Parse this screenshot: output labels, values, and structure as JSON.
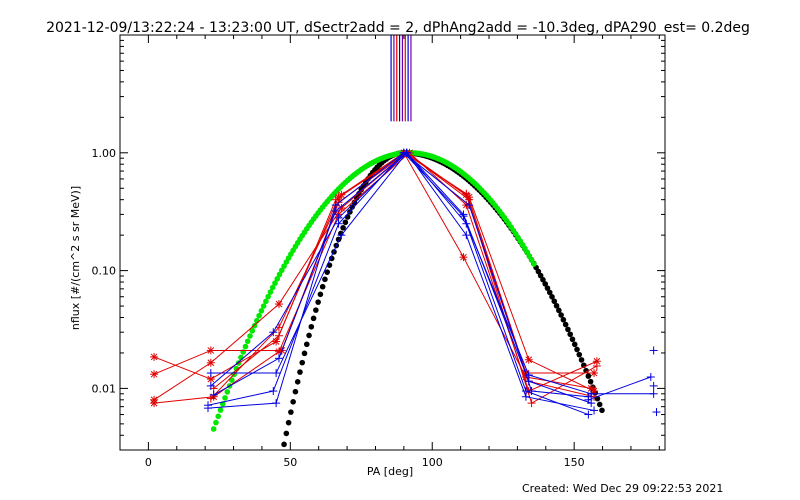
{
  "chart_data": {
    "type": "scatter",
    "title": "2021-12-09/13:22:24 - 13:23:00 UT, dSectr2add = 2, dPhAng2add = -10.3deg, dPA290_est=  0.2deg",
    "xlabel": "PA [deg]",
    "ylabel": "nflux [#/(cm^2 s sr MeV)]",
    "footer": "Created: Wed Dec 29 09:22:53 2021",
    "xlim": [
      -10,
      182
    ],
    "ylim": [
      0.003,
      10
    ],
    "yscale": "log",
    "x_ticks": [
      0,
      50,
      100,
      150
    ],
    "x_tick_labels": [
      "0",
      "50",
      "100",
      "150"
    ],
    "y_ticks": [
      0.01,
      0.1,
      1.0
    ],
    "y_tick_labels": [
      "0.01",
      "0.10",
      "1.00"
    ],
    "colors": {
      "red": "#e00000",
      "blue": "#0000e0",
      "black": "#000000",
      "green": "#00e800",
      "purple": "#7000a0"
    },
    "vertical_lines": [
      {
        "x": 85.5,
        "color": "#0000e0"
      },
      {
        "x": 86.5,
        "color": "#7000a0"
      },
      {
        "x": 87.5,
        "color": "#e00000"
      },
      {
        "x": 88.5,
        "color": "#0000e0"
      },
      {
        "x": 89.5,
        "color": "#7000a0"
      },
      {
        "x": 90.5,
        "color": "#e00000"
      },
      {
        "x": 91.5,
        "color": "#0000e0"
      },
      {
        "x": 92.5,
        "color": "#7000a0"
      }
    ],
    "series": [
      {
        "color": "#e00000",
        "marker": "star",
        "x": [
          2,
          22,
          45,
          67,
          91,
          112,
          133,
          157
        ],
        "y": [
          0.0185,
          0.012,
          0.025,
          0.42,
          1.0,
          0.44,
          0.0135,
          0.0135
        ]
      },
      {
        "color": "#e00000",
        "marker": "star",
        "x": [
          2,
          22,
          46,
          68,
          91,
          113,
          134,
          157
        ],
        "y": [
          0.008,
          0.0165,
          0.052,
          0.34,
          1.0,
          0.42,
          0.0175,
          0.0095
        ]
      },
      {
        "color": "#e00000",
        "marker": "star",
        "x": [
          2,
          23,
          46,
          67,
          92,
          112,
          134,
          158
        ],
        "y": [
          0.0075,
          0.0085,
          0.0205,
          0.3,
          1.0,
          0.36,
          0.0095,
          0.017
        ]
      },
      {
        "color": "#e00000",
        "marker": "star",
        "x": [
          2,
          22,
          47,
          68,
          90,
          111,
          133,
          156
        ],
        "y": [
          0.0132,
          0.021,
          0.021,
          0.44,
          1.0,
          0.13,
          0.0125,
          0.01
        ]
      },
      {
        "color": "#e00000",
        "marker": "plus",
        "x": [
          22,
          46,
          67,
          91,
          113,
          134,
          157
        ],
        "y": [
          0.0082,
          0.033,
          0.38,
          1.0,
          0.4,
          0.0115,
          0.0085
        ]
      },
      {
        "color": "#e00000",
        "marker": "plus",
        "x": [
          23,
          46,
          66,
          90,
          112,
          135,
          158
        ],
        "y": [
          0.01,
          0.028,
          0.4,
          1.0,
          0.45,
          0.0075,
          0.0155
        ]
      },
      {
        "color": "#0000e0",
        "marker": "plus",
        "x": [
          22,
          44,
          67,
          91,
          112,
          133,
          155
        ],
        "y": [
          0.0105,
          0.03,
          0.28,
          1.0,
          0.25,
          0.0095,
          0.006
        ]
      },
      {
        "color": "#0000e0",
        "marker": "plus",
        "x": [
          21,
          45,
          66,
          90,
          111,
          134,
          156
        ],
        "y": [
          0.0068,
          0.0075,
          0.36,
          1.0,
          0.29,
          0.013,
          0.009
        ]
      },
      {
        "color": "#0000e0",
        "marker": "plus",
        "x": [
          22,
          45,
          68,
          91,
          112,
          133,
          157
        ],
        "y": [
          0.0135,
          0.0135,
          0.2,
          1.0,
          0.2,
          0.0085,
          0.0065
        ]
      },
      {
        "color": "#0000e0",
        "marker": "plus",
        "x": [
          21,
          44,
          67,
          90,
          113,
          135,
          155
        ],
        "y": [
          0.0072,
          0.0095,
          0.25,
          1.0,
          0.36,
          0.0095,
          0.0085
        ]
      },
      {
        "color": "#0000e0",
        "marker": "plus",
        "x": [
          23,
          46,
          66,
          91,
          111,
          134,
          156
        ],
        "y": [
          0.0088,
          0.018,
          0.32,
          1.0,
          0.3,
          0.0115,
          0.0075
        ]
      },
      {
        "color": "#0000e0",
        "marker": "plus",
        "x": [
          156,
          178
        ],
        "y": [
          0.009,
          0.009
        ]
      },
      {
        "color": "#0000e0",
        "marker": "plus",
        "x": [
          155,
          177
        ],
        "y": [
          0.008,
          0.0125
        ]
      }
    ],
    "blue_isolated_points": {
      "x": [
        178,
        178,
        179
      ],
      "y": [
        0.021,
        0.0105,
        0.0063
      ]
    },
    "black_curve": {
      "color": "#000000",
      "x_center": 90,
      "sigma_left": 12.5,
      "sigma_right": 22,
      "x_range": [
        47,
        160
      ]
    },
    "green_curve": {
      "color": "#00e800",
      "x_center": 92,
      "sigma": 21,
      "x_range": [
        23,
        136
      ]
    }
  }
}
